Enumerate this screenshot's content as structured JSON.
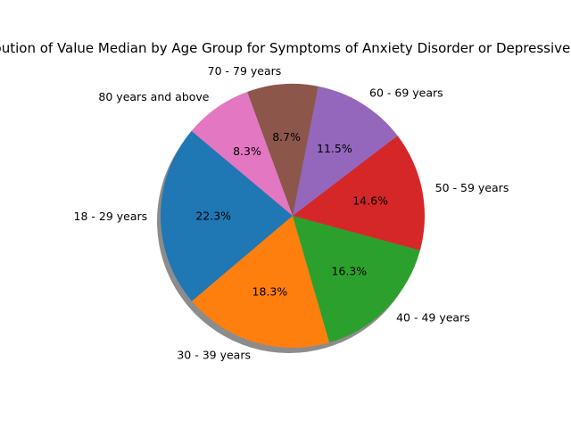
{
  "chart_data": {
    "type": "pie",
    "title": "Distribution of Value Median by Age Group for Symptoms of Anxiety Disorder or Depressive Disorder",
    "start_angle_deg": 140,
    "direction": "counterclockwise",
    "shadow": true,
    "slices": [
      {
        "label": "18 - 29 years",
        "percent": 22.3,
        "pct_label": "22.3%",
        "color": "#1f77b4"
      },
      {
        "label": "30 - 39 years",
        "percent": 18.3,
        "pct_label": "18.3%",
        "color": "#ff7f0e"
      },
      {
        "label": "40 - 49 years",
        "percent": 16.3,
        "pct_label": "16.3%",
        "color": "#2ca02c"
      },
      {
        "label": "50 - 59 years",
        "percent": 14.6,
        "pct_label": "14.6%",
        "color": "#d62728"
      },
      {
        "label": "60 - 69 years",
        "percent": 11.5,
        "pct_label": "11.5%",
        "color": "#9467bd"
      },
      {
        "label": "70 - 79 years",
        "percent": 8.7,
        "pct_label": "8.7%",
        "color": "#8c564b"
      },
      {
        "label": "80 years and above",
        "percent": 8.3,
        "pct_label": "8.3%",
        "color": "#e377c2"
      }
    ]
  }
}
